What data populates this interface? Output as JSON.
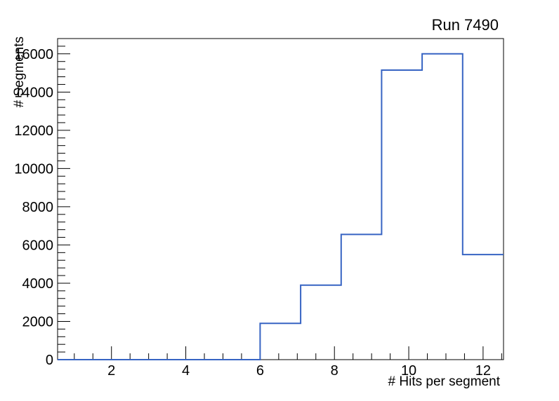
{
  "chart_data": {
    "type": "histogram",
    "style": "step-outline",
    "title": "Run 7490",
    "xlabel": "# Hits per segment",
    "ylabel": "# Segments",
    "xlim": [
      0.55,
      12.55
    ],
    "ylim": [
      0,
      16800
    ],
    "bin_edges": [
      0.55,
      1.64,
      2.73,
      3.82,
      4.91,
      6.0,
      7.09,
      8.18,
      9.27,
      10.36,
      11.45,
      12.55
    ],
    "counts": [
      0,
      0,
      0,
      0,
      0,
      1900,
      3900,
      6550,
      15150,
      16000,
      5500
    ],
    "x_major_ticks": [
      2,
      4,
      6,
      8,
      10,
      12
    ],
    "x_minor_step": 0.5,
    "y_major_ticks": [
      0,
      2000,
      4000,
      6000,
      8000,
      10000,
      12000,
      14000,
      16000
    ],
    "y_minor_step": 400,
    "grid": false,
    "legend": null,
    "colors": {
      "line": "#3764c3",
      "axis": "#000000",
      "background": "#ffffff",
      "text": "#000000"
    }
  }
}
